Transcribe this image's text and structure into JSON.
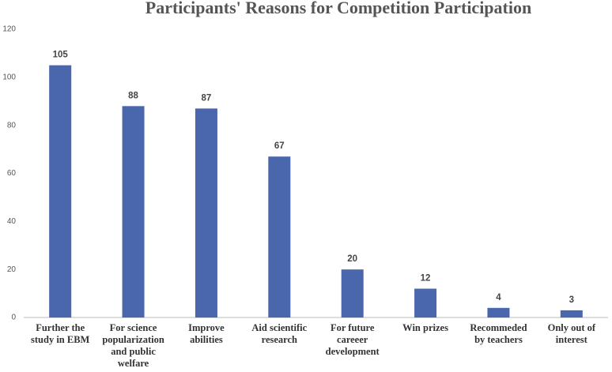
{
  "chart_data": {
    "type": "bar",
    "title": "Participants' Reasons for Competition Participation",
    "categories": [
      "Further the study in EBM",
      "For science popularization and public welfare",
      "Improve abilities",
      "Aid scientific research",
      "For future careeer development",
      "Win prizes",
      "Recommeded by teachers",
      "Only out of interest"
    ],
    "values": [
      105,
      88,
      87,
      67,
      20,
      12,
      4,
      3
    ],
    "color": "#4a66ac",
    "ylim": [
      0,
      120
    ],
    "yticks": [
      0,
      20,
      40,
      60,
      80,
      100,
      120
    ],
    "grid": false
  }
}
